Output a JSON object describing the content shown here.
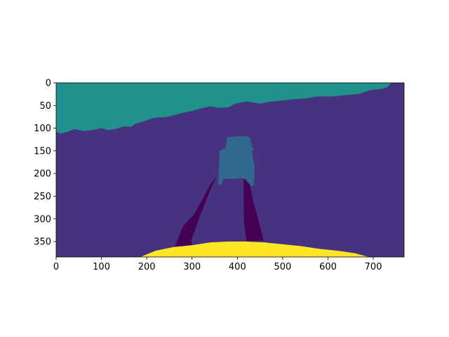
{
  "chart_data": {
    "type": "heatmap",
    "title": "",
    "xlabel": "",
    "ylabel": "",
    "xlim": [
      0,
      768
    ],
    "ylim": [
      384,
      0
    ],
    "x_ticks": [
      0,
      100,
      200,
      300,
      400,
      500,
      600,
      700
    ],
    "y_ticks": [
      0,
      50,
      100,
      150,
      200,
      250,
      300,
      350
    ],
    "x_tick_labels": [
      "0",
      "100",
      "200",
      "300",
      "400",
      "500",
      "600",
      "700"
    ],
    "y_tick_labels": [
      "0",
      "50",
      "100",
      "150",
      "200",
      "250",
      "300",
      "350"
    ],
    "colormap": "viridis",
    "grid": false,
    "regions": [
      {
        "class_index": 3,
        "color": "#21918c",
        "outline": [
          [
            0,
            0
          ],
          [
            740,
            0
          ],
          [
            730,
            10
          ],
          [
            715,
            14
          ],
          [
            700,
            15
          ],
          [
            690,
            17
          ],
          [
            670,
            24
          ],
          [
            650,
            26
          ],
          [
            630,
            28
          ],
          [
            610,
            30
          ],
          [
            590,
            30
          ],
          [
            575,
            30
          ],
          [
            555,
            34
          ],
          [
            525,
            36
          ],
          [
            510,
            38
          ],
          [
            490,
            40
          ],
          [
            470,
            42
          ],
          [
            450,
            46
          ],
          [
            440,
            44
          ],
          [
            420,
            41
          ],
          [
            395,
            46
          ],
          [
            380,
            54
          ],
          [
            360,
            55
          ],
          [
            340,
            52
          ],
          [
            320,
            56
          ],
          [
            300,
            62
          ],
          [
            280,
            66
          ],
          [
            265,
            70
          ],
          [
            250,
            74
          ],
          [
            240,
            76
          ],
          [
            225,
            76
          ],
          [
            210,
            79
          ],
          [
            190,
            86
          ],
          [
            175,
            90
          ],
          [
            165,
            97
          ],
          [
            150,
            96
          ],
          [
            130,
            102
          ],
          [
            115,
            104
          ],
          [
            100,
            100
          ],
          [
            80,
            104
          ],
          [
            60,
            106
          ],
          [
            40,
            102
          ],
          [
            25,
            108
          ],
          [
            10,
            112
          ],
          [
            0,
            108
          ]
        ]
      },
      {
        "class_index": 4,
        "color": "#31688e",
        "outline": [
          [
            373,
            145
          ],
          [
            378,
            120
          ],
          [
            398,
            118
          ],
          [
            422,
            118
          ],
          [
            428,
            122
          ],
          [
            432,
            140
          ],
          [
            437,
            148
          ],
          [
            432,
            150
          ],
          [
            438,
            185
          ],
          [
            437,
            225
          ],
          [
            430,
            228
          ],
          [
            420,
            212
          ],
          [
            408,
            210
          ],
          [
            394,
            212
          ],
          [
            381,
            212
          ],
          [
            370,
            212
          ],
          [
            364,
            225
          ],
          [
            358,
            225
          ],
          [
            358,
            215
          ],
          [
            360,
            180
          ],
          [
            360,
            150
          ]
        ]
      },
      {
        "class_index": 1,
        "color": "#440154",
        "outline": [
          [
            355,
            205
          ],
          [
            342,
            232
          ],
          [
            318,
            292
          ],
          [
            298,
            348
          ],
          [
            300,
            358
          ],
          [
            262,
            362
          ],
          [
            280,
            316
          ],
          [
            305,
            290
          ],
          [
            320,
            262
          ],
          [
            340,
            225
          ]
        ]
      },
      {
        "class_index": 1,
        "color": "#440154",
        "outline": [
          [
            414,
            212
          ],
          [
            428,
            225
          ],
          [
            435,
            262
          ],
          [
            446,
            300
          ],
          [
            458,
            348
          ],
          [
            420,
            350
          ],
          [
            415,
            310
          ],
          [
            414,
            270
          ]
        ]
      },
      {
        "class_index": 5,
        "color": "#fde725",
        "outline": [
          [
            186,
            384
          ],
          [
            220,
            370
          ],
          [
            260,
            362
          ],
          [
            300,
            358
          ],
          [
            340,
            352
          ],
          [
            380,
            350
          ],
          [
            420,
            350
          ],
          [
            460,
            352
          ],
          [
            500,
            356
          ],
          [
            540,
            360
          ],
          [
            580,
            366
          ],
          [
            620,
            370
          ],
          [
            660,
            376
          ],
          [
            690,
            384
          ]
        ]
      }
    ],
    "background_class": {
      "class_index": 2,
      "color": "#46327e"
    }
  }
}
